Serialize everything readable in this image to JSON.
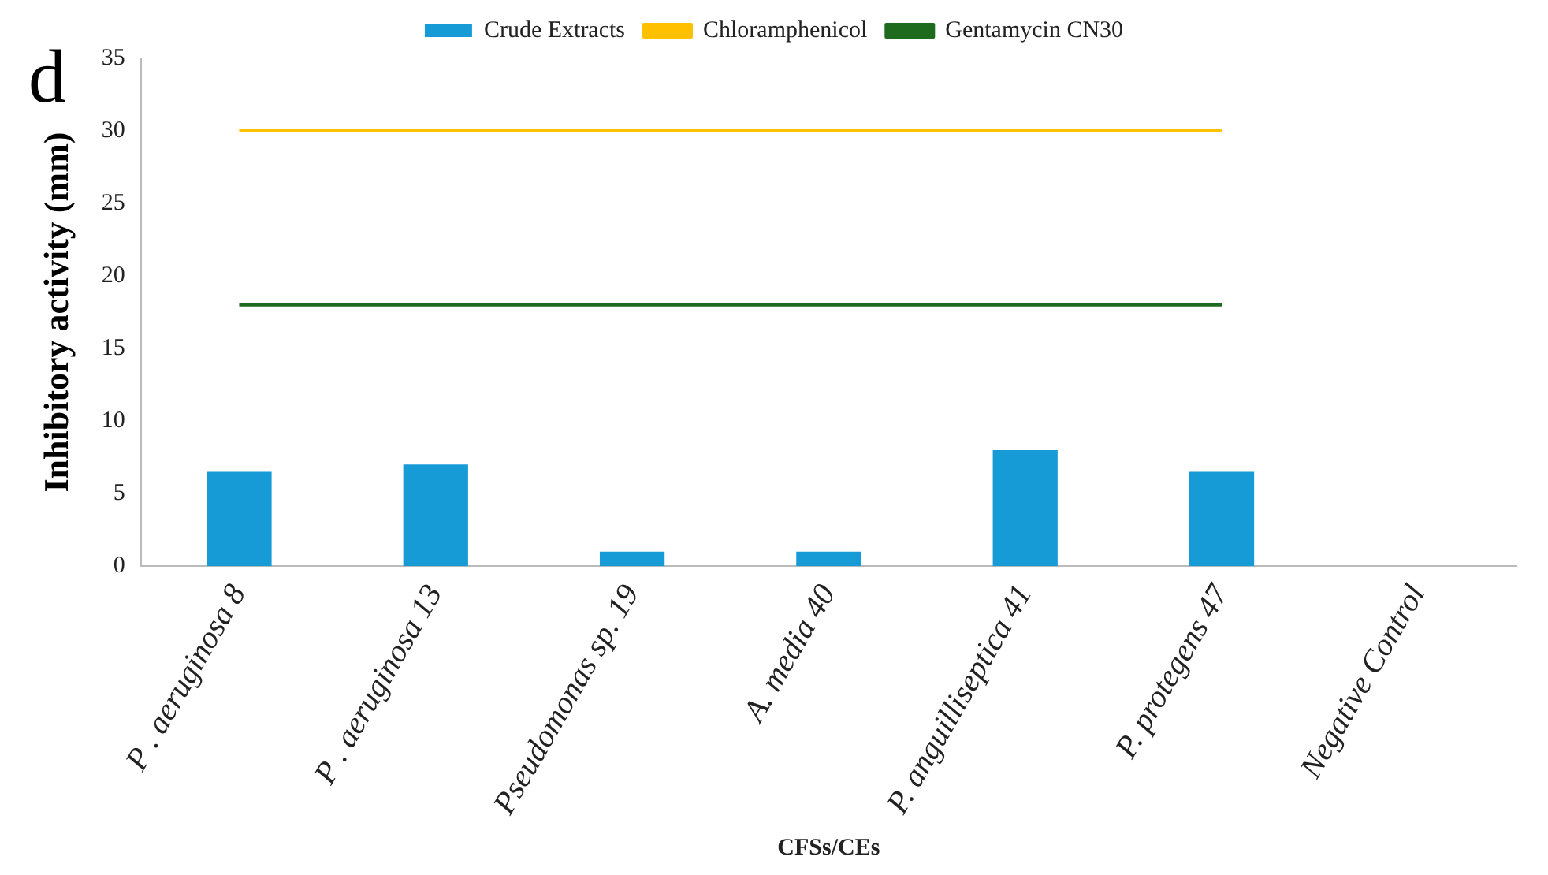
{
  "chart_data": {
    "type": "bar",
    "xlabel": "CFSs/CEs",
    "ylabel": "Inhibitory activity (mm)",
    "annotations": [
      "d"
    ],
    "categories": [
      "P . aeruginosa 8",
      "P . aeruginosa 13",
      "Pseudomonas sp. 19",
      "A. media 40",
      "P. anguilliseptica 41",
      "P. protegens 47",
      "Negative Control"
    ],
    "series": [
      {
        "name": "Crude Extracts",
        "color": "#179bd7",
        "values": [
          6.5,
          7,
          1,
          1,
          8,
          6.5,
          0
        ]
      },
      {
        "name": "Chloramphenicol",
        "type": "line",
        "color": "#ffc000",
        "values": [
          30,
          30,
          30,
          30,
          30,
          30,
          null
        ]
      },
      {
        "name": "Gentamycin CN30",
        "type": "line",
        "color": "#1e6b1e",
        "values": [
          18,
          18,
          18,
          18,
          18,
          18,
          null
        ]
      }
    ],
    "ylim": [
      0,
      35
    ],
    "yticks": [
      0,
      5,
      10,
      15,
      20,
      25,
      30,
      35
    ],
    "grid": false,
    "legend": "top",
    "marker": "none",
    "line_style": "solid"
  }
}
